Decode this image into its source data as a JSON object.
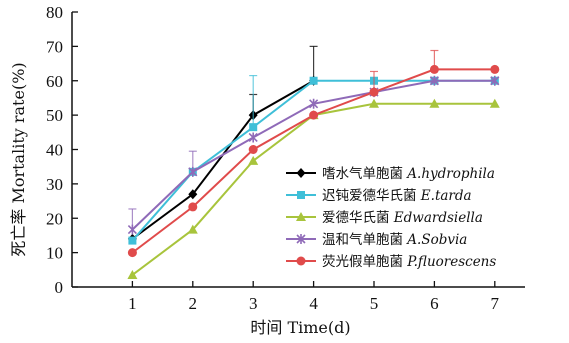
{
  "chart_data": {
    "type": "line",
    "xlabel": "时间 Time(d)",
    "ylabel": "死亡率 Mortality rate(%)",
    "x": [
      1,
      2,
      3,
      4,
      5,
      6,
      7
    ],
    "xlim": [
      0,
      7.5
    ],
    "ylim": [
      0,
      80
    ],
    "yticks": [
      0,
      10,
      20,
      30,
      40,
      50,
      60,
      70,
      80
    ],
    "xticks": [
      1,
      2,
      3,
      4,
      5,
      6,
      7
    ],
    "grid": false,
    "legend_position": "center-right",
    "series": [
      {
        "name_cn": "嗜水气单胞菌 ",
        "name_latin": "A.hydrophila",
        "color": "#000000",
        "marker": "diamond",
        "values": [
          14,
          27,
          50,
          60,
          null,
          null,
          null
        ],
        "errors": [
          null,
          null,
          6,
          10,
          null,
          null,
          null
        ]
      },
      {
        "name_cn": "迟钝爱德华氏菌 ",
        "name_latin": "E.tarda",
        "color": "#3fbfd8",
        "marker": "square",
        "values": [
          13.5,
          33.5,
          46.5,
          60,
          60,
          60,
          60
        ],
        "errors": [
          null,
          null,
          15,
          null,
          null,
          null,
          null
        ]
      },
      {
        "name_cn": "爱德华氏菌 ",
        "name_latin": "Edwardsiella",
        "color": "#a8c43c",
        "marker": "triangle",
        "values": [
          3.5,
          16.7,
          36.7,
          50,
          53.3,
          53.3,
          53.3
        ],
        "errors": [
          null,
          null,
          null,
          null,
          null,
          null,
          null
        ]
      },
      {
        "name_cn": "温和气单胞菌 ",
        "name_latin": "A.Sobvia",
        "color": "#8f6ab8",
        "marker": "x",
        "values": [
          16.7,
          33.5,
          43.5,
          53.3,
          56.7,
          60,
          60
        ],
        "errors": [
          6,
          6,
          null,
          null,
          null,
          null,
          null
        ]
      },
      {
        "name_cn": "荧光假单胞菌 ",
        "name_latin": "P.fluorescens",
        "color": "#e04b4b",
        "marker": "circle",
        "values": [
          10,
          23.3,
          40,
          50,
          56.7,
          63.3,
          63.3
        ],
        "errors": [
          null,
          null,
          null,
          null,
          6,
          5.5,
          null
        ]
      }
    ]
  }
}
